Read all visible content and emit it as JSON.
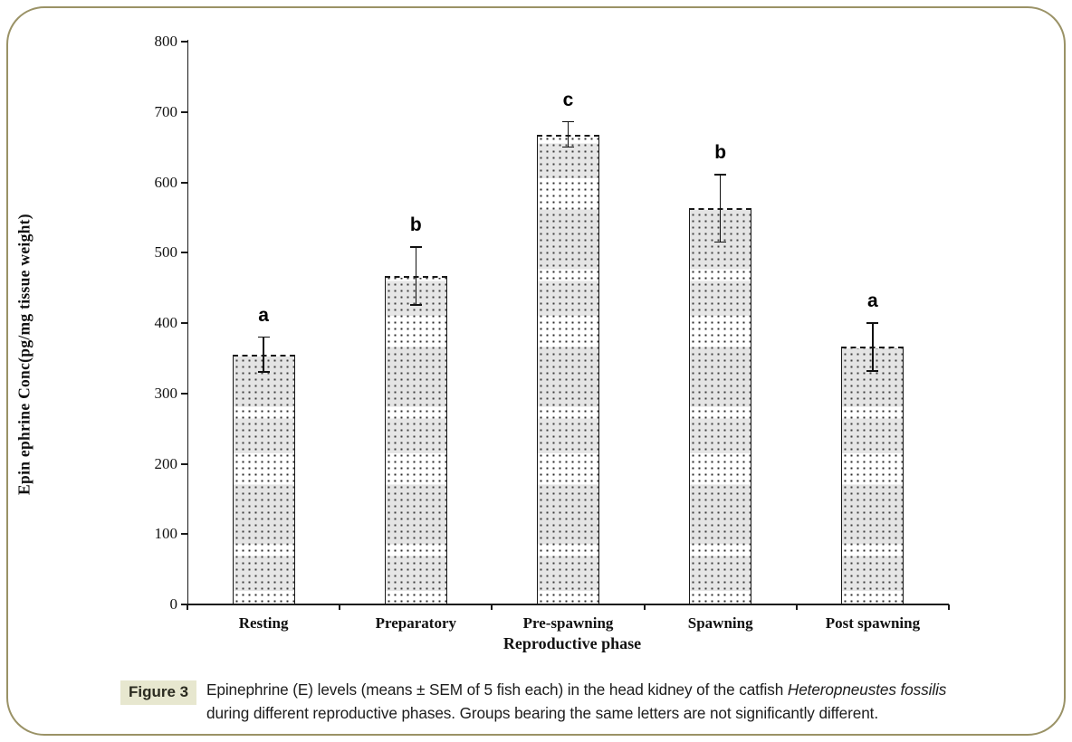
{
  "frame": {
    "border_color": "#9a9266"
  },
  "chart_data": {
    "type": "bar",
    "title": "",
    "xlabel": "Reproductive phase",
    "ylabel": "Epin ephrine Conc(pg/mg tissue weight)",
    "categories": [
      "Resting",
      "Preparatory",
      "Pre-spawning",
      "Spawning",
      "Post spawning"
    ],
    "values": [
      355,
      467,
      668,
      563,
      366
    ],
    "errors": [
      25,
      41,
      18,
      48,
      34
    ],
    "sig_letters": [
      "a",
      "b",
      "c",
      "b",
      "a"
    ],
    "ylim": [
      0,
      800
    ],
    "ytick_step": 100,
    "ytick_labels": [
      "0",
      "100",
      "200",
      "300",
      "400",
      "500",
      "600",
      "700",
      "800"
    ],
    "grid": false,
    "legend": null,
    "bar_fill": "stippled-dot-pattern",
    "bar_edge_color": "#1a1a1a",
    "error_bar_style": "plus-minus-SEM-with-caps"
  },
  "caption": {
    "label": "Figure 3",
    "label_bg": "#e7e7cf",
    "line1_before_italic": "Epinephrine (E) levels (means ± SEM of 5 fish each) in the head kidney of the catfish ",
    "line1_italic": "Heteropneustes fossilis",
    "line2": "during different reproductive phases. Groups bearing the same letters are not significantly different."
  }
}
